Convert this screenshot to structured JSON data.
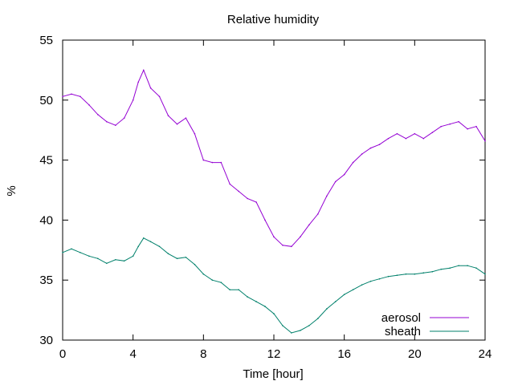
{
  "chart_data": {
    "type": "line",
    "title": "Relative humidity",
    "xlabel": "Time [hour]",
    "ylabel": "%",
    "xlim": [
      0,
      24
    ],
    "ylim": [
      30,
      55
    ],
    "xticks": [
      0,
      4,
      8,
      12,
      16,
      20,
      24
    ],
    "xtick_labels": [
      "0",
      "4",
      "8",
      "12",
      "16",
      "20",
      "24"
    ],
    "yticks": [
      30,
      35,
      40,
      45,
      50,
      55
    ],
    "ytick_labels": [
      "30",
      "35",
      "40",
      "45",
      "50",
      "55"
    ],
    "grid": false,
    "legend_position": "bottom-right",
    "series": [
      {
        "name": "aerosol",
        "color": "#9400d3",
        "x": [
          0,
          0.5,
          1,
          1.5,
          2,
          2.5,
          3,
          3.5,
          4,
          4.3,
          4.6,
          5,
          5.5,
          6,
          6.5,
          7,
          7.5,
          8,
          8.5,
          9,
          9.5,
          10,
          10.5,
          11,
          11.5,
          12,
          12.5,
          13,
          13.5,
          14,
          14.5,
          15,
          15.5,
          16,
          16.5,
          17,
          17.5,
          18,
          18.5,
          19,
          19.5,
          20,
          20.5,
          21,
          21.5,
          22,
          22.5,
          23,
          23.5,
          24
        ],
        "y": [
          50.3,
          50.5,
          50.3,
          49.6,
          48.8,
          48.2,
          47.9,
          48.5,
          50,
          51.5,
          52.5,
          51,
          50.3,
          48.7,
          48,
          48.5,
          47.2,
          45,
          44.8,
          44.8,
          43,
          42.4,
          41.8,
          41.5,
          40,
          38.6,
          37.9,
          37.8,
          38.6,
          39.6,
          40.5,
          42,
          43.2,
          43.8,
          44.8,
          45.5,
          46,
          46.3,
          46.8,
          47.2,
          46.8,
          47.2,
          46.8,
          47.3,
          47.8,
          48,
          48.2,
          47.6,
          47.8,
          46.6
        ]
      },
      {
        "name": "sheath",
        "color": "#00806b",
        "x": [
          0,
          0.5,
          1,
          1.5,
          2,
          2.5,
          3,
          3.5,
          4,
          4.3,
          4.6,
          5,
          5.5,
          6,
          6.5,
          7,
          7.5,
          8,
          8.5,
          9,
          9.5,
          10,
          10.5,
          11,
          11.5,
          12,
          12.5,
          13,
          13.5,
          14,
          14.5,
          15,
          15.5,
          16,
          16.5,
          17,
          17.5,
          18,
          18.5,
          19,
          19.5,
          20,
          20.5,
          21,
          21.5,
          22,
          22.5,
          23,
          23.5,
          24
        ],
        "y": [
          37.3,
          37.6,
          37.3,
          37,
          36.8,
          36.4,
          36.7,
          36.6,
          37,
          37.8,
          38.5,
          38.2,
          37.8,
          37.2,
          36.8,
          36.9,
          36.3,
          35.5,
          35,
          34.8,
          34.2,
          34.2,
          33.6,
          33.2,
          32.8,
          32.2,
          31.2,
          30.6,
          30.8,
          31.2,
          31.8,
          32.6,
          33.2,
          33.8,
          34.2,
          34.6,
          34.9,
          35.1,
          35.3,
          35.4,
          35.5,
          35.5,
          35.6,
          35.7,
          35.9,
          36,
          36.2,
          36.2,
          36,
          35.5
        ]
      }
    ]
  }
}
